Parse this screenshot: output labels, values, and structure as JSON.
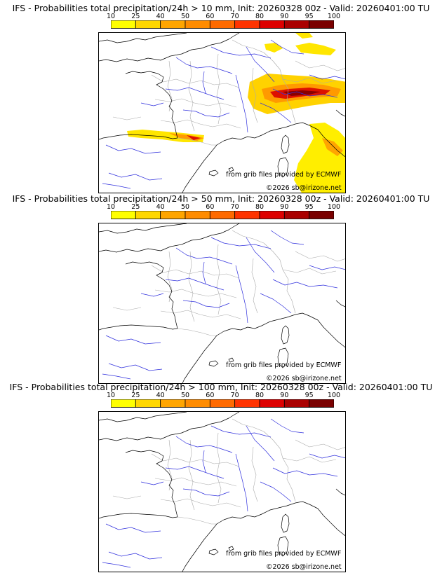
{
  "colorbar": {
    "ticks": [
      "10",
      "25",
      "40",
      "50",
      "60",
      "70",
      "80",
      "90",
      "95",
      "100"
    ],
    "colors": [
      "#ffff00",
      "#ffd700",
      "#ffa500",
      "#ff8c00",
      "#ff6a00",
      "#ff3300",
      "#dd0000",
      "#aa0000",
      "#7a0000"
    ]
  },
  "panels": [
    {
      "title": "IFS - Probabilities total precipitation/24h > 10 mm, Init: 20260328 00z - Valid: 20260401:00 TU",
      "credit_source": "from grib files provided by ECMWF",
      "credit_copyright": "©2026 sb@irizone.net",
      "precip_areas": true
    },
    {
      "title": "IFS - Probabilities total precipitation/24h > 50 mm, Init: 20260328 00z - Valid: 20260401:00 TU",
      "credit_source": "from grib files provided by ECMWF",
      "credit_copyright": "©2026 sb@irizone.net",
      "precip_areas": false
    },
    {
      "title": "IFS - Probabilities total precipitation/24h > 100 mm, Init: 20260328 00z - Valid: 20260401:00 TU",
      "credit_source": "from grib files provided by ECMWF",
      "credit_copyright": "©2026 sb@irizone.net",
      "precip_areas": false
    }
  ],
  "colors": {
    "coast": "#000000",
    "rivers": "#3030dd",
    "borders": "#aaaaaa"
  }
}
